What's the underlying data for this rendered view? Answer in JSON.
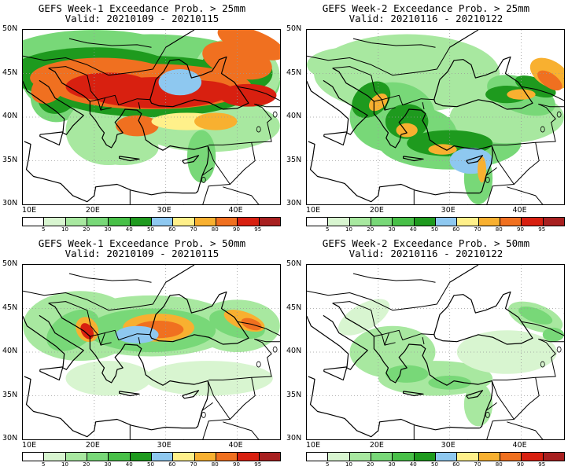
{
  "panels": [
    {
      "title": "GEFS Week-1 Exceedance Prob. > 25mm",
      "valid": "Valid: 20210109 - 20210115"
    },
    {
      "title": "GEFS Week-2 Exceedance Prob. > 25mm",
      "valid": "Valid: 20210116 - 20210122"
    },
    {
      "title": "GEFS Week-1 Exceedance Prob. > 50mm",
      "valid": "Valid: 20210109 - 20210115"
    },
    {
      "title": "GEFS Week-2 Exceedance Prob. > 50mm",
      "valid": "Valid: 20210116 - 20210122"
    }
  ],
  "axes": {
    "lat_labels": [
      "50N",
      "45N",
      "40N",
      "35N",
      "30N"
    ],
    "lon_labels": [
      "10E",
      "20E",
      "30E",
      "40E"
    ]
  },
  "colorbar": {
    "ticks": [
      "5",
      "10",
      "20",
      "30",
      "40",
      "50",
      "60",
      "70",
      "80",
      "90",
      "95"
    ],
    "colors": [
      "#ffffff",
      "#d8f5d0",
      "#a8e8a0",
      "#78d878",
      "#48c048",
      "#1e9a1e",
      "#8ec8f0",
      "#fff08a",
      "#f8b030",
      "#f07020",
      "#d82010",
      "#a82020"
    ]
  }
}
